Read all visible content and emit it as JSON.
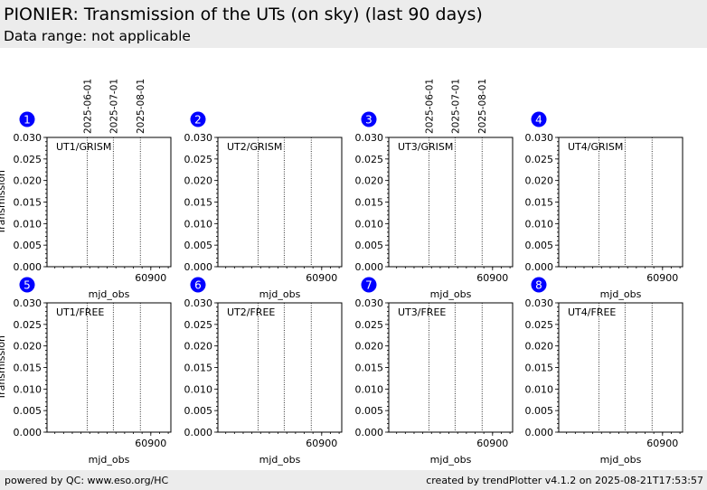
{
  "header": {
    "title": "PIONIER: Transmission of the UTs (on sky) (last 90 days)",
    "subtitle": "Data range: not applicable"
  },
  "footer": {
    "left": "powered by QC: www.eso.org/HC",
    "right": "created by trendPlotter v4.1.2 on 2025-08-21T17:53:57"
  },
  "colors": {
    "badge": "#0000ff",
    "header_bg": "#ececec"
  },
  "chart_data": [
    {
      "type": "scatter",
      "badge": "1",
      "panel_label": "UT1/GRISM",
      "xlabel": "mjd_obs",
      "ylabel": "Transmission",
      "xlim": [
        60781,
        60923
      ],
      "ylim": [
        0,
        0.03
      ],
      "yticks": [
        0,
        0.005,
        0.01,
        0.015,
        0.02,
        0.025,
        0.03
      ],
      "ytick_labels": [
        "0.000",
        "0.005",
        "0.010",
        "0.015",
        "0.020",
        "0.025",
        "0.030"
      ],
      "xticks": [
        60900
      ],
      "xtick_labels": [
        "60900"
      ],
      "date_markers": [
        {
          "mjd": 60827,
          "label": "2025-06-01"
        },
        {
          "mjd": 60857,
          "label": "2025-07-01"
        },
        {
          "mjd": 60888,
          "label": "2025-08-01"
        }
      ],
      "show_date_labels": true,
      "show_ylabel": true,
      "points": []
    },
    {
      "type": "scatter",
      "badge": "2",
      "panel_label": "UT2/GRISM",
      "xlabel": "mjd_obs",
      "ylabel": "",
      "xlim": [
        60781,
        60923
      ],
      "ylim": [
        0,
        0.03
      ],
      "yticks": [
        0,
        0.005,
        0.01,
        0.015,
        0.02,
        0.025,
        0.03
      ],
      "ytick_labels": [
        "0.000",
        "0.005",
        "0.010",
        "0.015",
        "0.020",
        "0.025",
        "0.030"
      ],
      "xticks": [
        60900
      ],
      "xtick_labels": [
        "60900"
      ],
      "date_markers": [
        {
          "mjd": 60827,
          "label": "2025-06-01"
        },
        {
          "mjd": 60857,
          "label": "2025-07-01"
        },
        {
          "mjd": 60888,
          "label": "2025-08-01"
        }
      ],
      "show_date_labels": false,
      "show_ylabel": false,
      "points": []
    },
    {
      "type": "scatter",
      "badge": "3",
      "panel_label": "UT3/GRISM",
      "xlabel": "mjd_obs",
      "ylabel": "",
      "xlim": [
        60781,
        60923
      ],
      "ylim": [
        0,
        0.03
      ],
      "yticks": [
        0,
        0.005,
        0.01,
        0.015,
        0.02,
        0.025,
        0.03
      ],
      "ytick_labels": [
        "0.000",
        "0.005",
        "0.010",
        "0.015",
        "0.020",
        "0.025",
        "0.030"
      ],
      "xticks": [
        60900
      ],
      "xtick_labels": [
        "60900"
      ],
      "date_markers": [
        {
          "mjd": 60827,
          "label": "2025-06-01"
        },
        {
          "mjd": 60857,
          "label": "2025-07-01"
        },
        {
          "mjd": 60888,
          "label": "2025-08-01"
        }
      ],
      "show_date_labels": true,
      "show_ylabel": false,
      "points": []
    },
    {
      "type": "scatter",
      "badge": "4",
      "panel_label": "UT4/GRISM",
      "xlabel": "mjd_obs",
      "ylabel": "",
      "xlim": [
        60781,
        60923
      ],
      "ylim": [
        0,
        0.03
      ],
      "yticks": [
        0,
        0.005,
        0.01,
        0.015,
        0.02,
        0.025,
        0.03
      ],
      "ytick_labels": [
        "0.000",
        "0.005",
        "0.010",
        "0.015",
        "0.020",
        "0.025",
        "0.030"
      ],
      "xticks": [
        60900
      ],
      "xtick_labels": [
        "60900"
      ],
      "date_markers": [
        {
          "mjd": 60827,
          "label": "2025-06-01"
        },
        {
          "mjd": 60857,
          "label": "2025-07-01"
        },
        {
          "mjd": 60888,
          "label": "2025-08-01"
        }
      ],
      "show_date_labels": false,
      "show_ylabel": false,
      "points": []
    },
    {
      "type": "scatter",
      "badge": "5",
      "panel_label": "UT1/FREE",
      "xlabel": "mjd_obs",
      "ylabel": "Transmission",
      "xlim": [
        60781,
        60923
      ],
      "ylim": [
        0,
        0.03
      ],
      "yticks": [
        0,
        0.005,
        0.01,
        0.015,
        0.02,
        0.025,
        0.03
      ],
      "ytick_labels": [
        "0.000",
        "0.005",
        "0.010",
        "0.015",
        "0.020",
        "0.025",
        "0.030"
      ],
      "xticks": [
        60900
      ],
      "xtick_labels": [
        "60900"
      ],
      "date_markers": [
        {
          "mjd": 60827,
          "label": "2025-06-01"
        },
        {
          "mjd": 60857,
          "label": "2025-07-01"
        },
        {
          "mjd": 60888,
          "label": "2025-08-01"
        }
      ],
      "show_date_labels": false,
      "show_ylabel": true,
      "points": []
    },
    {
      "type": "scatter",
      "badge": "6",
      "panel_label": "UT2/FREE",
      "xlabel": "mjd_obs",
      "ylabel": "",
      "xlim": [
        60781,
        60923
      ],
      "ylim": [
        0,
        0.03
      ],
      "yticks": [
        0,
        0.005,
        0.01,
        0.015,
        0.02,
        0.025,
        0.03
      ],
      "ytick_labels": [
        "0.000",
        "0.005",
        "0.010",
        "0.015",
        "0.020",
        "0.025",
        "0.030"
      ],
      "xticks": [
        60900
      ],
      "xtick_labels": [
        "60900"
      ],
      "date_markers": [
        {
          "mjd": 60827,
          "label": "2025-06-01"
        },
        {
          "mjd": 60857,
          "label": "2025-07-01"
        },
        {
          "mjd": 60888,
          "label": "2025-08-01"
        }
      ],
      "show_date_labels": false,
      "show_ylabel": false,
      "points": []
    },
    {
      "type": "scatter",
      "badge": "7",
      "panel_label": "UT3/FREE",
      "xlabel": "mjd_obs",
      "ylabel": "",
      "xlim": [
        60781,
        60923
      ],
      "ylim": [
        0,
        0.03
      ],
      "yticks": [
        0,
        0.005,
        0.01,
        0.015,
        0.02,
        0.025,
        0.03
      ],
      "ytick_labels": [
        "0.000",
        "0.005",
        "0.010",
        "0.015",
        "0.020",
        "0.025",
        "0.030"
      ],
      "xticks": [
        60900
      ],
      "xtick_labels": [
        "60900"
      ],
      "date_markers": [
        {
          "mjd": 60827,
          "label": "2025-06-01"
        },
        {
          "mjd": 60857,
          "label": "2025-07-01"
        },
        {
          "mjd": 60888,
          "label": "2025-08-01"
        }
      ],
      "show_date_labels": false,
      "show_ylabel": false,
      "points": []
    },
    {
      "type": "scatter",
      "badge": "8",
      "panel_label": "UT4/FREE",
      "xlabel": "mjd_obs",
      "ylabel": "",
      "xlim": [
        60781,
        60923
      ],
      "ylim": [
        0,
        0.03
      ],
      "yticks": [
        0,
        0.005,
        0.01,
        0.015,
        0.02,
        0.025,
        0.03
      ],
      "ytick_labels": [
        "0.000",
        "0.005",
        "0.010",
        "0.015",
        "0.020",
        "0.025",
        "0.030"
      ],
      "xticks": [
        60900
      ],
      "xtick_labels": [
        "60900"
      ],
      "date_markers": [
        {
          "mjd": 60827,
          "label": "2025-06-01"
        },
        {
          "mjd": 60857,
          "label": "2025-07-01"
        },
        {
          "mjd": 60888,
          "label": "2025-08-01"
        }
      ],
      "show_date_labels": false,
      "show_ylabel": false,
      "points": []
    }
  ]
}
